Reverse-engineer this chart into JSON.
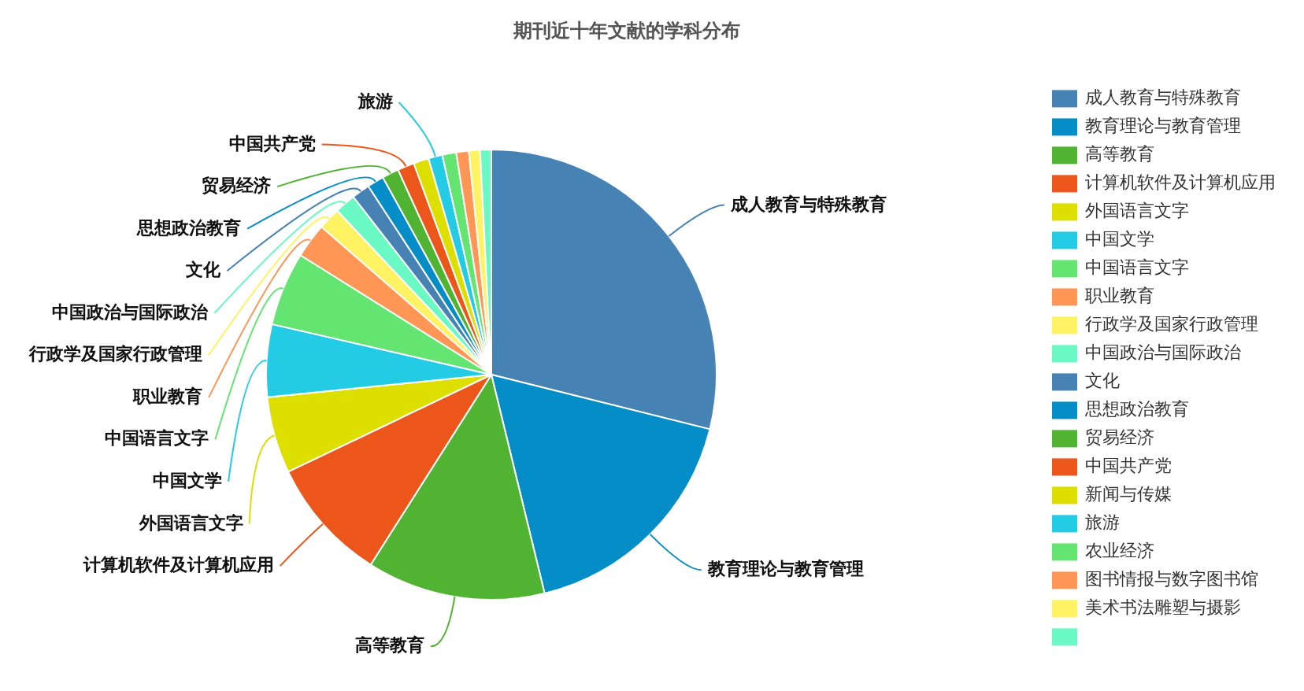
{
  "chart_data": {
    "type": "pie",
    "title": "期刊近十年文献的学科分布",
    "categories": [
      "成人教育与特殊教育",
      "教育理论与教育管理",
      "高等教育",
      "计算机软件及计算机应用",
      "外国语言文字",
      "中国文学",
      "中国语言文字",
      "职业教育",
      "行政学及国家行政管理",
      "中国政治与国际政治",
      "文化",
      "思想政治教育",
      "贸易经济",
      "中国共产党",
      "新闻与传媒",
      "旅游",
      "农业经济",
      "图书情报与数字图书馆",
      "美术书法雕塑与摄影",
      null
    ],
    "values": [
      28.9,
      17.3,
      12.8,
      8.9,
      5.5,
      5.2,
      5.3,
      2.5,
      1.6,
      1.5,
      1.3,
      1.2,
      1.2,
      1.2,
      1.1,
      1.0,
      1.0,
      0.9,
      0.8,
      0.8
    ],
    "colors": [
      "#4682b4",
      "#058dc7",
      "#50b432",
      "#ed561b",
      "#dddf00",
      "#24cbe5",
      "#64e572",
      "#ff9655",
      "#fff263",
      "#6af9c4",
      "#4682b4",
      "#058dc7",
      "#50b432",
      "#ed561b",
      "#dddf00",
      "#24cbe5",
      "#64e572",
      "#ff9655",
      "#fff263",
      "#6af9c4"
    ],
    "value_labels": [
      "成人教育与特殊教育",
      "教育理论与教育管理",
      "高等教育",
      "计算机软件及计算机应用",
      "外国语言文字",
      "中国文学",
      "中国语言文字",
      "职业教育",
      "行政学及国家行政管理",
      "中国政治与国际政治",
      "文化",
      "思想政治教育",
      "贸易经济",
      "中国共产党",
      null,
      "旅游",
      null,
      null,
      null,
      null
    ],
    "legend": "right"
  }
}
